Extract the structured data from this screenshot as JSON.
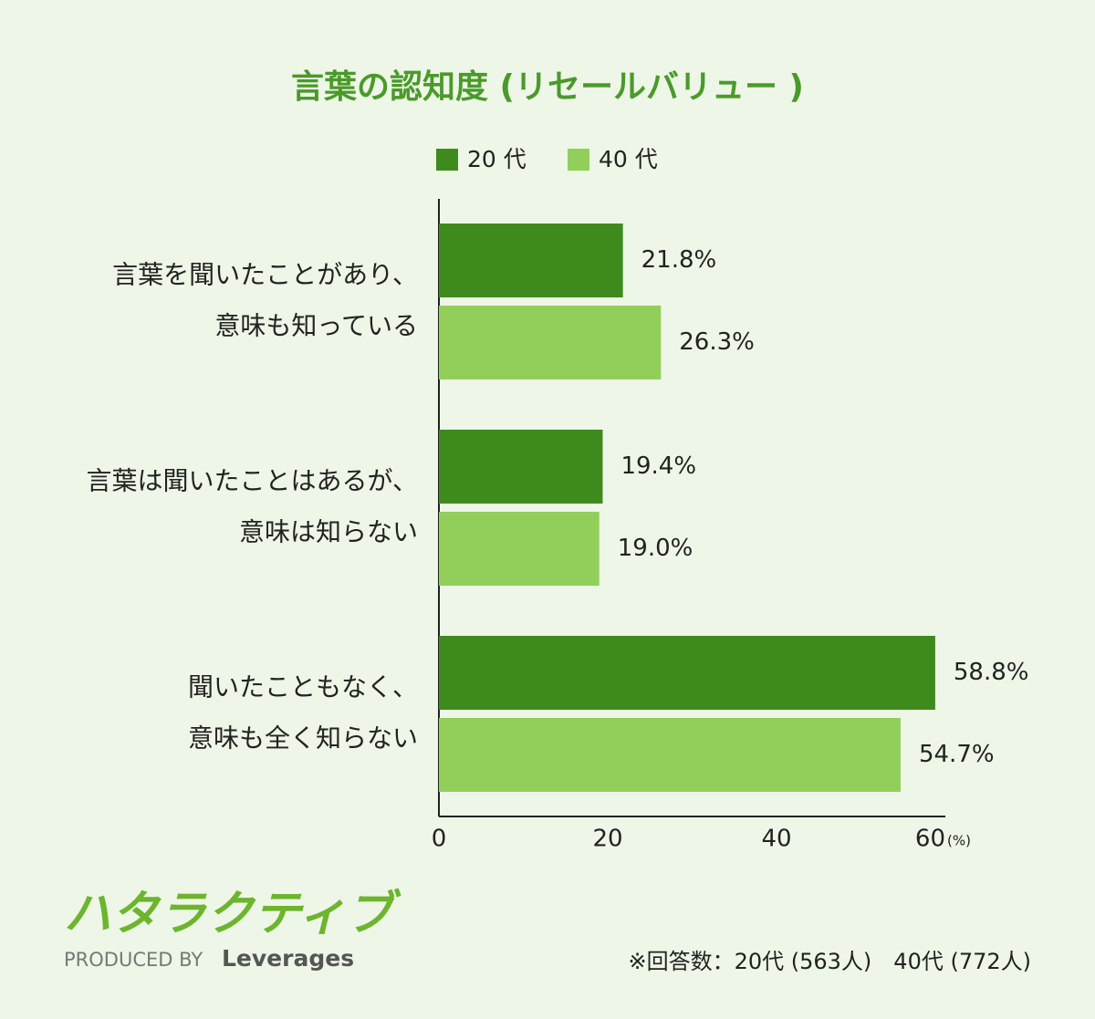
{
  "chart_data": {
    "type": "bar",
    "orientation": "horizontal",
    "title": "言葉の認知度 (リセールバリュー )",
    "categories": [
      [
        "言葉を聞いたことがあり、",
        "意味も知っている"
      ],
      [
        "言葉は聞いたことはあるが、",
        "意味は知らない"
      ],
      [
        "聞いたこともなく、",
        "意味も全く知らない"
      ]
    ],
    "series": [
      {
        "name": "20 代",
        "color": "#3f8a1c",
        "values": [
          21.8,
          19.4,
          58.8
        ],
        "value_labels": [
          "21.8%",
          "19.4%",
          "58.8%"
        ]
      },
      {
        "name": "40 代",
        "color": "#92cf5a",
        "values": [
          26.3,
          19.0,
          54.7
        ],
        "value_labels": [
          "26.3%",
          "19.0%",
          "54.7%"
        ]
      }
    ],
    "xlim": [
      0,
      60
    ],
    "xticks": [
      0,
      20,
      40,
      60
    ],
    "x_unit": "(%)",
    "note": "※回答数：20代 (563人)　40代 (772人)"
  },
  "footer": {
    "logo": "ハタラクティブ",
    "produced_by": "PRODUCED BY",
    "brand": "Leverages"
  }
}
